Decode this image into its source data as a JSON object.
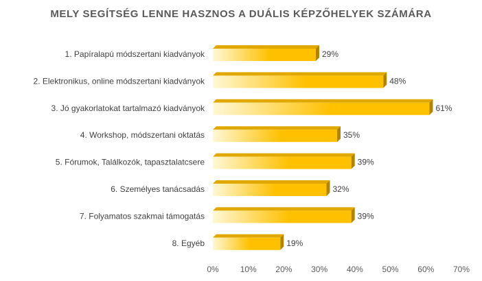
{
  "chart_data": {
    "type": "bar",
    "orientation": "horizontal",
    "title": "MELY SEGÍTSÉG LENNE HASZNOS A DUÁLIS KÉPZŐHELYEK SZÁMÁRA",
    "categories": [
      "1. Papíralapú módszertani kiadványok",
      "2. Elektronikus, online módszertani kiadványok",
      "3. Jó gyakorlatokat tartalmazó kiadványok",
      "4. Workshop, módszertani oktatás",
      "5. Fórumok, Találkozók, tapasztalatcsere",
      "6. Személyes tanácsadás",
      "7. Folyamatos szakmai támogatás",
      "8. Egyéb"
    ],
    "values": [
      29,
      48,
      61,
      35,
      39,
      32,
      39,
      19
    ],
    "data_labels": [
      "29%",
      "48%",
      "61%",
      "35%",
      "39%",
      "32%",
      "39%",
      "19%"
    ],
    "xlim": [
      0,
      70
    ],
    "xticks": [
      0,
      10,
      20,
      30,
      40,
      50,
      60,
      70
    ],
    "xtick_labels": [
      "0%",
      "10%",
      "20%",
      "30%",
      "40%",
      "50%",
      "60%",
      "70%"
    ],
    "grid": false,
    "legend": "none",
    "colors": {
      "bar_gradient_start": "#fff8d6",
      "bar_gradient_end": "#ffc000",
      "bar_top": "#e0a800",
      "bar_side": "#b08400",
      "title": "#595959",
      "text": "#404040"
    }
  }
}
